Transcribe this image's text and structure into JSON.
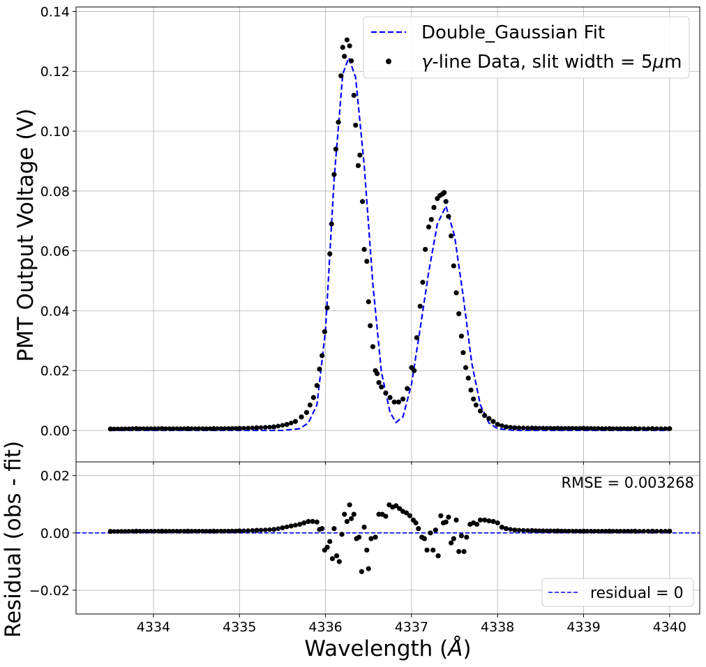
{
  "chart_data": [
    {
      "type": "scatter",
      "panel": "main",
      "xlabel": "Wavelength ($\\AA$)",
      "ylabel": "PMT Output Voltage (V)",
      "xlim": [
        4333.1,
        4340.35
      ],
      "ylim": [
        -0.0105,
        0.1415
      ],
      "xticks": [
        4334,
        4335,
        4336,
        4337,
        4338,
        4339,
        4340
      ],
      "yticks": [
        0.0,
        0.02,
        0.04,
        0.06,
        0.08,
        0.1,
        0.12,
        0.14
      ],
      "ytick_labels": [
        "0.00",
        "0.02",
        "0.04",
        "0.06",
        "0.08",
        "0.10",
        "0.12",
        "0.14"
      ],
      "grid": true,
      "legend_position": "top-right",
      "series": [
        {
          "name": "Double_Gaussian Fit",
          "style": "dashed line",
          "color": "#0000ff",
          "x": [
            4333.5,
            4335.5,
            4335.7,
            4335.8,
            4335.9,
            4336.0,
            4336.1,
            4336.2,
            4336.27,
            4336.35,
            4336.45,
            4336.55,
            4336.65,
            4336.75,
            4336.82,
            4336.9,
            4337.0,
            4337.1,
            4337.2,
            4337.3,
            4337.4,
            4337.5,
            4337.6,
            4337.7,
            4337.8,
            4337.9,
            4338.0,
            4338.2,
            4340.0
          ],
          "y": [
            0.0,
            0.0,
            0.0006,
            0.0025,
            0.0085,
            0.0335,
            0.084,
            0.119,
            0.1245,
            0.118,
            0.0885,
            0.049,
            0.0195,
            0.006,
            0.0027,
            0.0045,
            0.0155,
            0.034,
            0.053,
            0.069,
            0.075,
            0.065,
            0.045,
            0.0225,
            0.0085,
            0.0025,
            0.0006,
            0.0,
            0.0
          ]
        },
        {
          "name": "$\\gamma$-line Data, slit width = 5$\\mu$m",
          "style": "markers",
          "color": "#000000",
          "x": [
            4333.5,
            4333.8,
            4334.1,
            4334.4,
            4334.7,
            4335.0,
            4335.2,
            4335.4,
            4335.55,
            4335.65,
            4335.72,
            4335.78,
            4335.82,
            4335.86,
            4335.9,
            4335.93,
            4335.96,
            4335.99,
            4336.02,
            4336.05,
            4336.07,
            4336.1,
            4336.12,
            4336.15,
            4336.18,
            4336.2,
            4336.22,
            4336.25,
            4336.28,
            4336.3,
            4336.33,
            4336.35,
            4336.38,
            4336.4,
            4336.43,
            4336.45,
            4336.48,
            4336.5,
            4336.52,
            4336.55,
            4336.58,
            4336.6,
            4336.62,
            4336.65,
            4336.7,
            4336.75,
            4336.8,
            4336.85,
            4336.9,
            4336.95,
            4337.0,
            4337.03,
            4337.06,
            4337.1,
            4337.13,
            4337.16,
            4337.2,
            4337.23,
            4337.26,
            4337.3,
            4337.33,
            4337.36,
            4337.38,
            4337.4,
            4337.43,
            4337.46,
            4337.49,
            4337.52,
            4337.55,
            4337.58,
            4337.6,
            4337.63,
            4337.66,
            4337.69,
            4337.72,
            4337.75,
            4337.8,
            4337.85,
            4337.9,
            4337.95,
            4338.0,
            4338.1,
            4338.2,
            4338.4,
            4338.7,
            4339.0,
            4339.3,
            4339.6,
            4339.8,
            4340.0
          ],
          "y": [
            0.0005,
            0.0006,
            0.0006,
            0.0006,
            0.0006,
            0.0007,
            0.0009,
            0.0012,
            0.002,
            0.003,
            0.0045,
            0.006,
            0.0085,
            0.011,
            0.015,
            0.0205,
            0.025,
            0.033,
            0.041,
            0.059,
            0.069,
            0.0855,
            0.094,
            0.103,
            0.1185,
            0.128,
            0.125,
            0.1305,
            0.1285,
            0.1235,
            0.112,
            0.102,
            0.0885,
            0.092,
            0.0765,
            0.0605,
            0.0565,
            0.043,
            0.035,
            0.028,
            0.02,
            0.019,
            0.016,
            0.0145,
            0.0125,
            0.011,
            0.0095,
            0.0095,
            0.0105,
            0.014,
            0.021,
            0.02,
            0.031,
            0.0415,
            0.0495,
            0.0605,
            0.068,
            0.0705,
            0.0745,
            0.0775,
            0.0785,
            0.079,
            0.0795,
            0.0765,
            0.0715,
            0.065,
            0.055,
            0.046,
            0.039,
            0.0315,
            0.026,
            0.021,
            0.0175,
            0.0135,
            0.0105,
            0.0085,
            0.0065,
            0.005,
            0.004,
            0.003,
            0.002,
            0.0012,
            0.0009,
            0.0008,
            0.0007,
            0.0007,
            0.0006,
            0.0006,
            0.0006,
            0.0006
          ]
        }
      ]
    },
    {
      "type": "scatter",
      "panel": "residual",
      "xlabel": "Wavelength ($\\AA$)",
      "ylabel": "Residual (obs - fit)",
      "xlim": [
        4333.1,
        4340.35
      ],
      "ylim": [
        -0.0283,
        0.0248
      ],
      "xticks": [
        4334,
        4335,
        4336,
        4337,
        4338,
        4339,
        4340
      ],
      "xtick_labels": [
        "4334",
        "4335",
        "4336",
        "4337",
        "4338",
        "4339",
        "4340"
      ],
      "yticks": [
        -0.02,
        0.0,
        0.02
      ],
      "ytick_labels": [
        "−0.02",
        "0.00",
        "0.02"
      ],
      "grid": true,
      "legend_position": "bottom-right",
      "annotation": "RMSE = 0.003268",
      "series": [
        {
          "name": "residual = 0",
          "style": "dashed line",
          "color": "#0000ff",
          "x": [
            4333.1,
            4340.35
          ],
          "y": [
            0,
            0
          ]
        },
        {
          "name": "",
          "style": "markers",
          "color": "#000000",
          "x": [
            4333.5,
            4333.8,
            4334.1,
            4334.4,
            4334.7,
            4335.0,
            4335.2,
            4335.4,
            4335.5,
            4335.6,
            4335.7,
            4335.75,
            4335.8,
            4335.85,
            4335.9,
            4335.93,
            4335.96,
            4335.99,
            4336.02,
            4336.05,
            4336.08,
            4336.1,
            4336.13,
            4336.16,
            4336.19,
            4336.22,
            4336.25,
            4336.28,
            4336.3,
            4336.33,
            4336.36,
            4336.39,
            4336.42,
            4336.45,
            4336.48,
            4336.5,
            4336.53,
            4336.58,
            4336.62,
            4336.66,
            4336.7,
            4336.74,
            4336.78,
            4336.82,
            4336.86,
            4336.9,
            4336.94,
            4336.98,
            4337.02,
            4337.05,
            4337.08,
            4337.12,
            4337.15,
            4337.18,
            4337.22,
            4337.25,
            4337.28,
            4337.31,
            4337.34,
            4337.37,
            4337.4,
            4337.43,
            4337.46,
            4337.49,
            4337.52,
            4337.55,
            4337.58,
            4337.61,
            4337.64,
            4337.68,
            4337.72,
            4337.76,
            4337.8,
            4337.85,
            4337.9,
            4337.95,
            4338.0,
            4338.05,
            4338.1,
            4338.2,
            4338.4,
            4338.7,
            4339.0,
            4339.3,
            4339.6,
            4339.8,
            4340.0
          ],
          "y": [
            0.0005,
            0.0006,
            0.0006,
            0.0006,
            0.0006,
            0.0007,
            0.0009,
            0.0012,
            0.0018,
            0.0024,
            0.003,
            0.0035,
            0.004,
            0.004,
            0.0038,
            0.0012,
            0.0015,
            -0.006,
            -0.005,
            -0.003,
            -0.009,
            0.0015,
            -0.008,
            -0.01,
            -0.0005,
            0.0065,
            0.004,
            0.0098,
            0.005,
            0.0065,
            -0.002,
            -0.0015,
            -0.0135,
            0.002,
            -0.006,
            -0.0125,
            -0.002,
            -0.0015,
            0.0065,
            0.0065,
            0.0058,
            0.0098,
            0.009,
            0.0095,
            0.0085,
            0.0075,
            0.007,
            0.006,
            0.0045,
            0.0035,
            0.0015,
            -0.0015,
            -0.002,
            -0.006,
            0.0,
            -0.006,
            0.001,
            -0.008,
            0.006,
            0.0035,
            0.0038,
            0.0055,
            -0.0035,
            -0.002,
            0.0045,
            -0.0065,
            -0.001,
            -0.0065,
            -0.0015,
            0.003,
            0.0035,
            0.003,
            0.0045,
            0.0045,
            0.0042,
            0.004,
            0.0035,
            0.002,
            0.0015,
            0.001,
            0.0008,
            0.0007,
            0.0006,
            0.0006,
            0.0006,
            0.0006,
            0.0006
          ]
        }
      ]
    }
  ],
  "legend_main": {
    "fit_label_text": "Double_Gaussian Fit",
    "data_label_prefix": "γ",
    "data_label_mid": "-line Data, slit width = 5",
    "data_label_mu": "μ",
    "data_label_suffix": "m"
  },
  "legend_residual": {
    "label_text": "residual = 0"
  },
  "residual_annotation": "RMSE = 0.003268",
  "axes_text": {
    "main_ylabel": "PMT Output Voltage (V)",
    "residual_ylabel": "Residual (obs - fit)",
    "xlabel_prefix": "Wavelength (",
    "xlabel_symbol": "Å",
    "xlabel_suffix": ")"
  }
}
